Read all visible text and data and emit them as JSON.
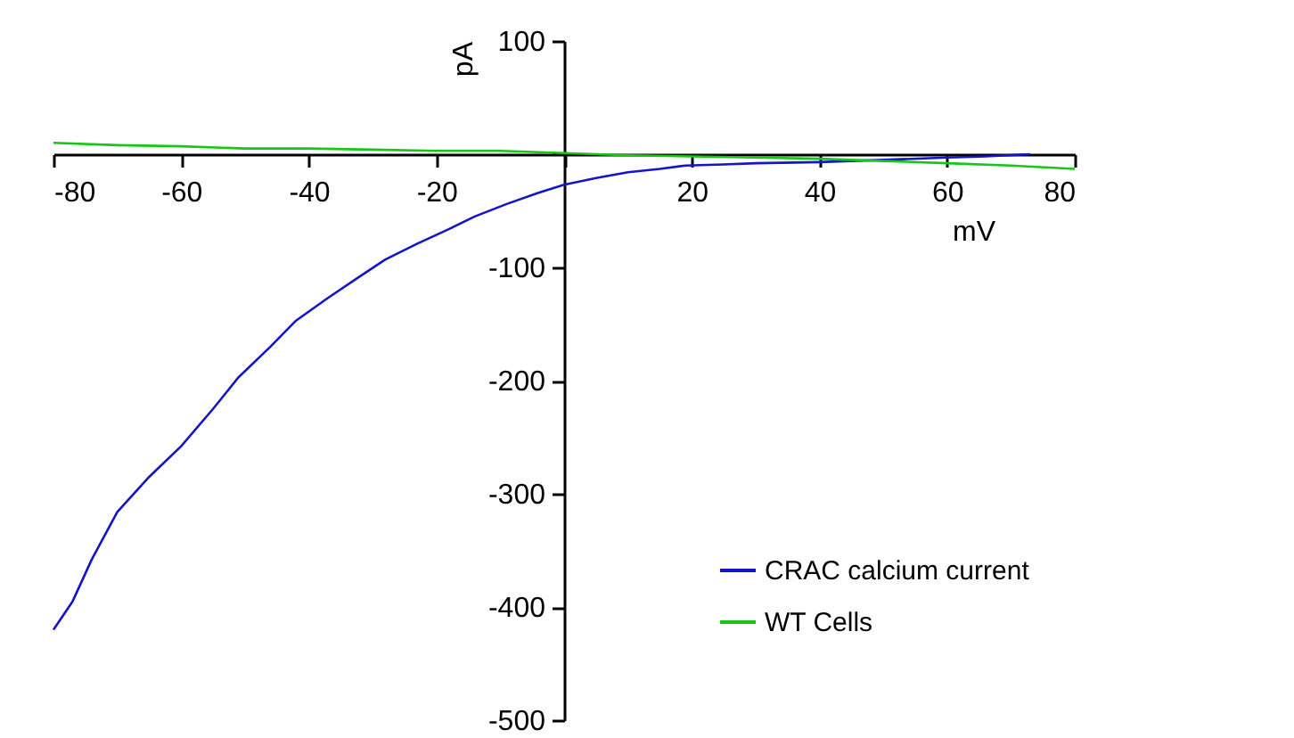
{
  "chart_data": {
    "type": "line",
    "xlabel": "mV",
    "ylabel": "pA",
    "xlim": [
      -80,
      80
    ],
    "ylim": [
      -500,
      100
    ],
    "xticks": [
      -80,
      -60,
      -40,
      -20,
      {
        "value": 0,
        "label": null
      },
      20,
      40,
      60,
      80
    ],
    "yticks": [
      -500,
      -400,
      -300,
      -200,
      -100,
      {
        "value": 0,
        "label": null
      },
      100
    ],
    "grid": false,
    "legend": "bottom right",
    "marker": "none",
    "line_style": "solid",
    "series": [
      {
        "name": "CRAC calcium current",
        "color": "#1414c8",
        "x": [
          -80,
          -77,
          -74,
          -70,
          -65,
          -60,
          -55,
          -51,
          -46,
          -42,
          -37,
          -32,
          -28,
          -23,
          -18,
          -14,
          -9,
          -4,
          0,
          5,
          10,
          15,
          19,
          25,
          30,
          40,
          50,
          60,
          66,
          73
        ],
        "values": [
          -420,
          -395,
          -358,
          -316,
          -285,
          -258,
          -225,
          -197,
          -170,
          -147,
          -127,
          -108,
          -93,
          -79,
          -66,
          -55,
          -44,
          -34,
          -27,
          -21,
          -16,
          -13,
          -10,
          -9,
          -8,
          -7,
          -5,
          -3,
          -2,
          0
        ]
      },
      {
        "name": "WT Cells",
        "color": "#14c814",
        "x": [
          -80,
          -70,
          -60,
          -50,
          -40,
          -30,
          -20,
          -10,
          0,
          10,
          20,
          30,
          40,
          50,
          60,
          70,
          80
        ],
        "values": [
          10,
          8,
          7,
          5,
          5,
          4,
          3,
          3,
          1,
          -1,
          -2,
          -3,
          -4,
          -6,
          -8,
          -10,
          -13
        ]
      }
    ]
  }
}
